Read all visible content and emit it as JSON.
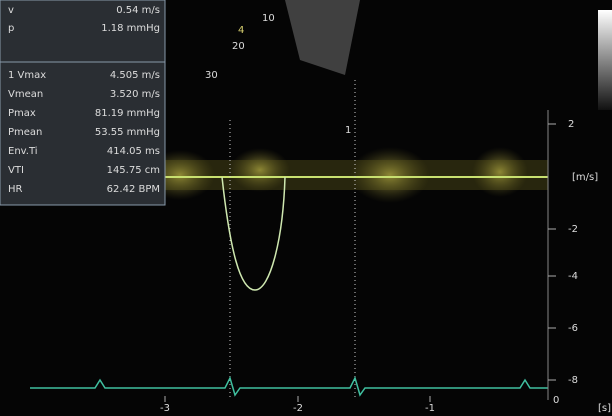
{
  "panel": {
    "rows": [
      {
        "label": "v",
        "value": "0.54 m/s"
      },
      {
        "label": "p",
        "value": "1.18 mmHg"
      },
      {
        "label": "1  Vmax",
        "value": "4.505 m/s"
      },
      {
        "label": "Vmean",
        "value": "3.520 m/s"
      },
      {
        "label": "Pmax",
        "value": "81.19 mmHg"
      },
      {
        "label": "Pmean",
        "value": "53.55 mmHg"
      },
      {
        "label": "Env.Ti",
        "value": "414.05 ms"
      },
      {
        "label": "VTI",
        "value": "145.75 cm"
      },
      {
        "label": "HR",
        "value": "62.42 BPM"
      }
    ]
  },
  "sector_labels": [
    "10",
    "4",
    "20",
    "30"
  ],
  "cursor_marker": "1",
  "velocity_scale": {
    "labels": [
      "2",
      "-2",
      "-4",
      "-6",
      "-8"
    ],
    "unit": "[m/s]",
    "zero": "0"
  },
  "time_scale": {
    "labels": [
      "-3",
      "-2",
      "-1"
    ],
    "unit": "[s]"
  }
}
